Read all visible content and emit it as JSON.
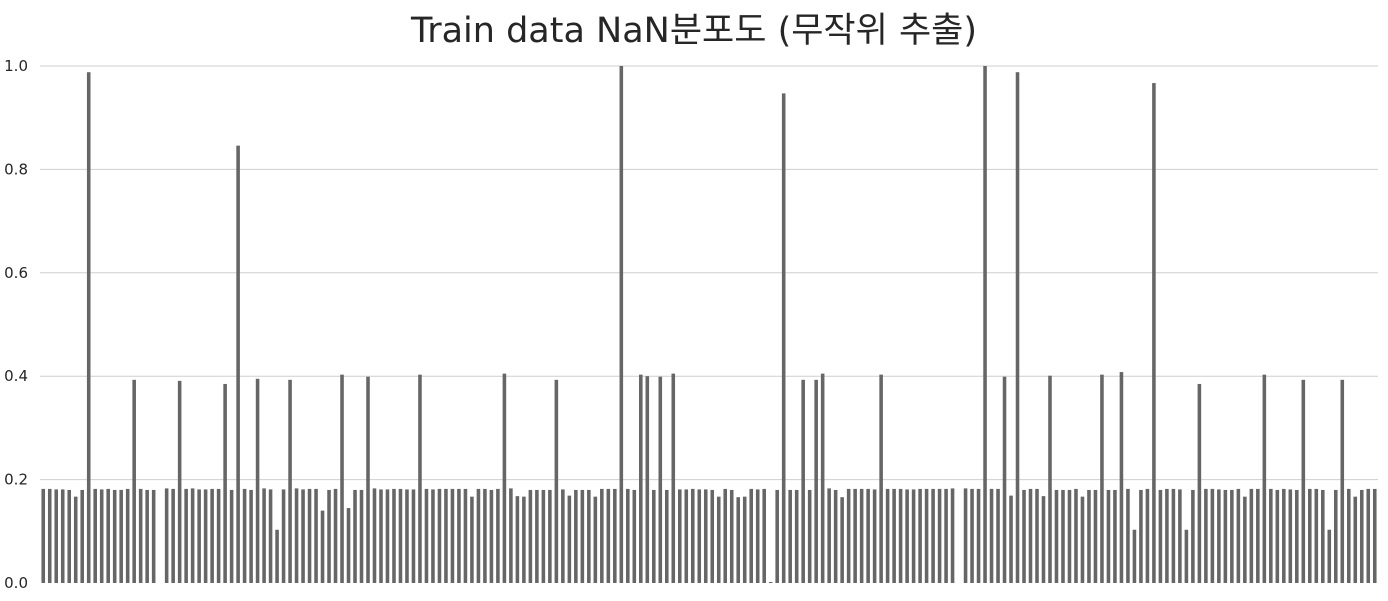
{
  "chart_data": {
    "type": "bar",
    "title": "Train data NaN분포도 (무작위 추출)",
    "xlabel": "",
    "ylabel": "",
    "ylim": [
      0,
      1.0
    ],
    "yticks": [
      "0.0",
      "0.2",
      "0.4",
      "0.6",
      "0.8",
      "1.0"
    ],
    "grid": "horizontal",
    "bar_color": "#666666",
    "grid_color": "#cfcfcf",
    "values": [
      0.182,
      0.182,
      0.181,
      0.181,
      0.18,
      0.167,
      0.18,
      0.988,
      0.182,
      0.181,
      0.182,
      0.18,
      0.18,
      0.182,
      0.393,
      0.182,
      0.18,
      0.18,
      0.0,
      0.183,
      0.182,
      0.391,
      0.182,
      0.183,
      0.181,
      0.181,
      0.182,
      0.182,
      0.385,
      0.18,
      0.846,
      0.182,
      0.18,
      0.395,
      0.183,
      0.181,
      0.103,
      0.181,
      0.393,
      0.183,
      0.181,
      0.182,
      0.182,
      0.14,
      0.18,
      0.182,
      0.403,
      0.145,
      0.18,
      0.18,
      0.399,
      0.183,
      0.181,
      0.181,
      0.182,
      0.182,
      0.181,
      0.181,
      0.403,
      0.182,
      0.181,
      0.182,
      0.182,
      0.182,
      0.182,
      0.182,
      0.167,
      0.182,
      0.182,
      0.18,
      0.182,
      0.405,
      0.183,
      0.168,
      0.167,
      0.18,
      0.18,
      0.18,
      0.18,
      0.393,
      0.181,
      0.169,
      0.18,
      0.18,
      0.18,
      0.167,
      0.182,
      0.182,
      0.182,
      1.0,
      0.182,
      0.18,
      0.403,
      0.4,
      0.18,
      0.399,
      0.18,
      0.405,
      0.181,
      0.181,
      0.182,
      0.181,
      0.181,
      0.18,
      0.167,
      0.182,
      0.18,
      0.166,
      0.167,
      0.182,
      0.181,
      0.182,
      0.002,
      0.18,
      0.947,
      0.18,
      0.18,
      0.393,
      0.18,
      0.393,
      0.405,
      0.183,
      0.18,
      0.166,
      0.182,
      0.182,
      0.182,
      0.182,
      0.181,
      0.403,
      0.182,
      0.182,
      0.182,
      0.181,
      0.181,
      0.182,
      0.182,
      0.182,
      0.182,
      0.182,
      0.183,
      0.0,
      0.183,
      0.182,
      0.182,
      1.0,
      0.182,
      0.182,
      0.399,
      0.169,
      0.988,
      0.18,
      0.182,
      0.182,
      0.168,
      0.401,
      0.18,
      0.18,
      0.18,
      0.182,
      0.167,
      0.18,
      0.18,
      0.403,
      0.18,
      0.18,
      0.408,
      0.182,
      0.103,
      0.18,
      0.182,
      0.967,
      0.18,
      0.182,
      0.182,
      0.181,
      0.103,
      0.18,
      0.385,
      0.182,
      0.182,
      0.181,
      0.18,
      0.18,
      0.182,
      0.167,
      0.182,
      0.182,
      0.403,
      0.182,
      0.18,
      0.182,
      0.181,
      0.18,
      0.393,
      0.182,
      0.182,
      0.18,
      0.103,
      0.18,
      0.393,
      0.182,
      0.167,
      0.18,
      0.182,
      0.182
    ]
  }
}
